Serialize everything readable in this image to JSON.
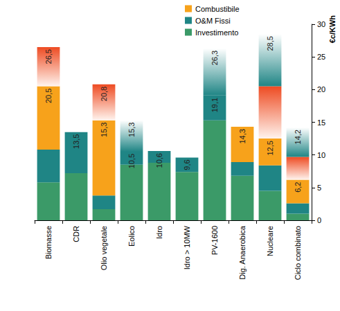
{
  "chart_data": {
    "type": "bar",
    "stacked": true,
    "y_label": "€c/KWh",
    "categories": [
      "Biomasse",
      "CDR",
      "Olio vegetale",
      "Eolico",
      "Idro",
      "Idro > 10MW",
      "PV-1600",
      "Dig. Anaerobica",
      "Nucleare",
      "Ciclo combinato"
    ],
    "series": [
      {
        "name": "Combustibile",
        "color": "#f7a21b",
        "values": [
          9.7,
          null,
          11.5,
          null,
          null,
          null,
          null,
          5.4,
          4.1,
          3.6
        ],
        "range": [
          6.0,
          null,
          5.5,
          null,
          null,
          null,
          null,
          null,
          8.0,
          3.5
        ]
      },
      {
        "name": "O&M Fissi",
        "color": "#1f8585",
        "values": [
          5.0,
          6.3,
          2.1,
          2.0,
          1.8,
          2.2,
          3.8,
          2.1,
          3.9,
          1.6
        ],
        "range": [
          null,
          null,
          null,
          4.8,
          null,
          null,
          7.2,
          null,
          8.0,
          4.5
        ]
      },
      {
        "name": "Investimento",
        "color": "#3b9a68",
        "values": [
          5.8,
          7.2,
          1.7,
          8.5,
          8.8,
          7.4,
          15.3,
          6.8,
          4.5,
          1.0
        ]
      }
    ],
    "annotations": [
      {
        "category": "Biomasse",
        "value": 26.5,
        "label": "26,5"
      },
      {
        "category": "Biomasse",
        "value": 20.5,
        "label": "20,5"
      },
      {
        "category": "CDR",
        "value": 13.5,
        "label": "13,5"
      },
      {
        "category": "Olio vegetale",
        "value": 20.8,
        "label": "20,8"
      },
      {
        "category": "Olio vegetale",
        "value": 15.3,
        "label": "15,3"
      },
      {
        "category": "Eolico",
        "value": 15.3,
        "label": "15,3"
      },
      {
        "category": "Eolico",
        "value": 10.5,
        "label": "10,5"
      },
      {
        "category": "Idro",
        "value": 10.6,
        "label": "10,6"
      },
      {
        "category": "Idro > 10MW",
        "value": 9.6,
        "label": "9,6"
      },
      {
        "category": "PV-1600",
        "value": 26.3,
        "label": "26,3"
      },
      {
        "category": "PV-1600",
        "value": 19.1,
        "label": "19,1"
      },
      {
        "category": "Dig. Anaerobica",
        "value": 14.3,
        "label": "14,3"
      },
      {
        "category": "Nucleare",
        "value": 28.5,
        "label": "28,5"
      },
      {
        "category": "Nucleare",
        "value": 12.5,
        "label": "12,5"
      },
      {
        "category": "Ciclo combinato",
        "value": 14.2,
        "label": "14,2"
      },
      {
        "category": "Ciclo combinato",
        "value": 6.2,
        "label": "6,2"
      }
    ],
    "legend": "top",
    "grid": false,
    "ylim": [
      0,
      30
    ],
    "yticks": [
      0,
      5,
      10,
      15,
      20,
      25,
      30
    ]
  }
}
